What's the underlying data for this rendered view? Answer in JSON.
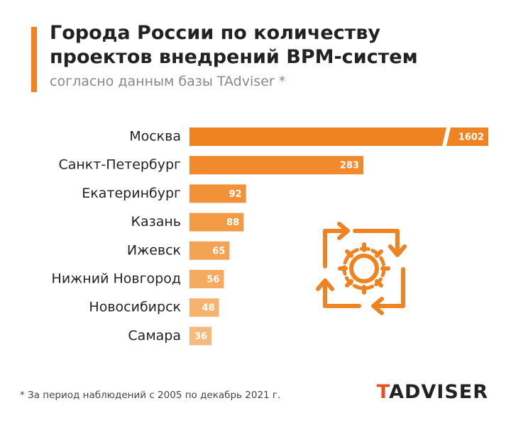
{
  "chart_data": {
    "type": "bar",
    "title": "Города России по количеству проектов внедрений BPM-систем",
    "subtitle": "согласно данным базы TAdviser *",
    "categories": [
      "Москва",
      "Санкт-Петербург",
      "Екатеринбург",
      "Казань",
      "Ижевск",
      "Нижний Новгород",
      "Новосибирск",
      "Самара"
    ],
    "values": [
      1602,
      283,
      92,
      88,
      65,
      56,
      48,
      36
    ],
    "colors": [
      "#f08321",
      "#f08a2c",
      "#f29238",
      "#f39a45",
      "#f4a253",
      "#f5aa61",
      "#f6b26f",
      "#f7ba7e"
    ],
    "footnote": "* За период наблюдений с 2005 по декабрь 2021 г."
  },
  "logo": "TADVISER"
}
